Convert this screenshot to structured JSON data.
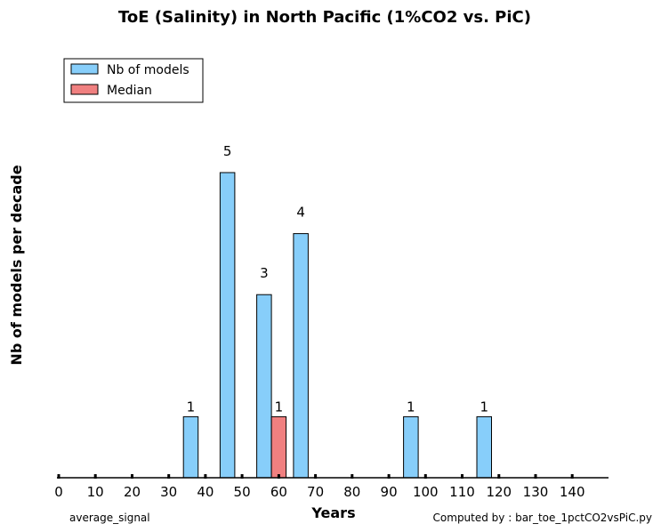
{
  "chart_data": {
    "type": "bar",
    "title": "ToE (Salinity) in North Pacific (1%CO2 vs. PiC)",
    "xlabel": "Years",
    "ylabel": "Nb of models per decade",
    "xlim": [
      0,
      150
    ],
    "ylim": [
      0,
      6
    ],
    "x_ticks": [
      0,
      10,
      20,
      30,
      40,
      50,
      60,
      70,
      80,
      90,
      100,
      110,
      120,
      130,
      140
    ],
    "grid": false,
    "legend_position": "top-left",
    "series": [
      {
        "name": "Nb of models",
        "color": "#87cefa",
        "bin_start": [
          30,
          40,
          50,
          60,
          90,
          110
        ],
        "values": [
          1,
          5,
          3,
          4,
          1,
          1
        ],
        "labels": [
          "1",
          "5",
          "3",
          "4",
          "1",
          "1"
        ]
      },
      {
        "name": "Median",
        "color": "#f08080",
        "bin_start": [
          50
        ],
        "values": [
          1
        ],
        "labels": [
          "1"
        ]
      }
    ]
  },
  "footer": {
    "left": "average_signal",
    "right": "Computed by : bar_toe_1pctCO2vsPiC.py"
  }
}
